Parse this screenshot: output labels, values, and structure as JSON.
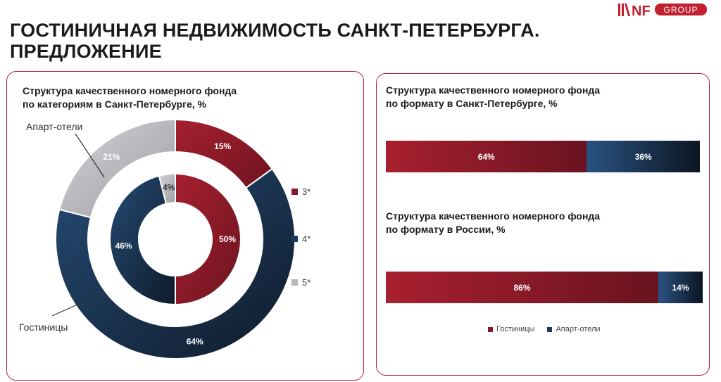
{
  "logo": {
    "mark": "NF",
    "text": "GROUP"
  },
  "page": {
    "title_line1": "ГОСТИНИЧНАЯ НЕДВИЖИМОСТЬ САНКТ-ПЕТЕРБУРГА.",
    "title_line2": "ПРЕДЛОЖЕНИЕ"
  },
  "colors": {
    "hotels": "#8b1a28",
    "apart": "#1c3a5e",
    "cat3": "#8b1a28",
    "cat4": "#1c3a5e",
    "cat5": "#b8b8bd",
    "border": "#b7202e"
  },
  "left_card": {
    "title_line1": "Структура качественного номерного фонда",
    "title_line2": "по категориям в Санкт-Петербурге, %",
    "outer_label_apart": "Апарт-отели",
    "outer_label_hotels": "Гостиницы",
    "legend": [
      {
        "label": "3*",
        "color": "#8b1a28"
      },
      {
        "label": "4*",
        "color": "#1c3a5e"
      },
      {
        "label": "5*",
        "color": "#b8b8bd"
      }
    ]
  },
  "right_card": {
    "title1_line1": "Структура качественного номерного фонда",
    "title1_line2": "по формату в Санкт-Петербурге, %",
    "title2_line1": "Структура качественного номерного фонда",
    "title2_line2": "по формату в России, %",
    "legend": [
      {
        "label": "Гостиницы",
        "color": "#8b1a28"
      },
      {
        "label": "Апарт-отели",
        "color": "#1c3a5e"
      }
    ]
  },
  "chart_data": [
    {
      "type": "pie",
      "ring": "outer",
      "categories": [
        "3*",
        "4*",
        "5*"
      ],
      "values": [
        15,
        64,
        21
      ],
      "labels": [
        "15%",
        "64%",
        "21%"
      ]
    },
    {
      "type": "pie",
      "ring": "inner",
      "categories": [
        "3*",
        "4*",
        "5*"
      ],
      "values": [
        50,
        46,
        4
      ],
      "labels": [
        "50%",
        "46%",
        "4%"
      ]
    },
    {
      "type": "bar",
      "orientation": "horizontal-stacked",
      "categories": [
        "Санкт-Петербург"
      ],
      "series": [
        {
          "name": "Гостиницы",
          "values": [
            64
          ],
          "label": "64%"
        },
        {
          "name": "Апарт-отели",
          "values": [
            36
          ],
          "label": "36%"
        }
      ]
    },
    {
      "type": "bar",
      "orientation": "horizontal-stacked",
      "categories": [
        "Россия"
      ],
      "series": [
        {
          "name": "Гостиницы",
          "values": [
            86
          ],
          "label": "86%"
        },
        {
          "name": "Апарт-отели",
          "values": [
            14
          ],
          "label": "14%"
        }
      ]
    }
  ]
}
